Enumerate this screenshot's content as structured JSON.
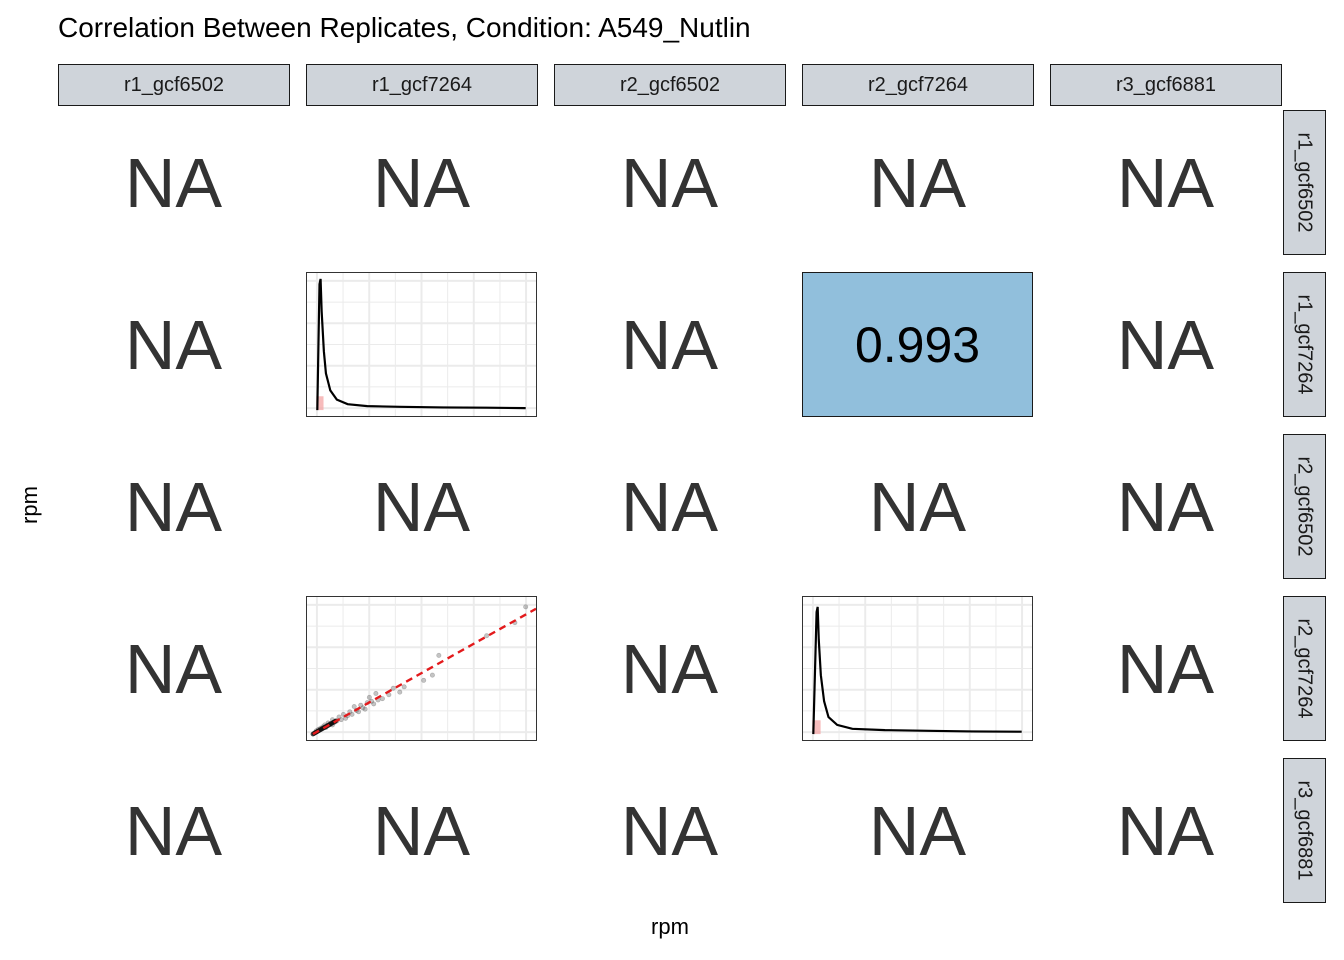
{
  "title": "Correlation Between Replicates, Condition: A549_Nutlin",
  "xlabel": "rpm",
  "ylabel": "rpm",
  "columns": [
    "r1_gcf6502",
    "r1_gcf7264",
    "r2_gcf6502",
    "r2_gcf7264",
    "r3_gcf6881"
  ],
  "rows": [
    "r1_gcf6502",
    "r1_gcf7264",
    "r2_gcf6502",
    "r2_gcf7264",
    "r3_gcf6881"
  ],
  "na_text": "NA",
  "colors": {
    "strip_fill": "#cfd4da",
    "correlation_fill": "#91bfdc",
    "fit_line": "#e31a1c",
    "density_fill": "#f4a6a6",
    "na_text": "#333333",
    "grid": "#ebebeb"
  },
  "chart_data": {
    "type": "scatter",
    "title": "Correlation Between Replicates, Condition: A549_Nutlin",
    "xlabel": "rpm",
    "ylabel": "rpm",
    "grid": true,
    "legend": "none",
    "correlation": {
      "row": "r1_gcf7264",
      "column": "r2_gcf7264",
      "value": "0.993"
    },
    "density_r1_gcf7264": [
      [
        0.02,
        0.0
      ],
      [
        0.03,
        0.96
      ],
      [
        0.035,
        1.0
      ],
      [
        0.04,
        0.75
      ],
      [
        0.05,
        0.45
      ],
      [
        0.06,
        0.28
      ],
      [
        0.08,
        0.15
      ],
      [
        0.11,
        0.08
      ],
      [
        0.16,
        0.045
      ],
      [
        0.25,
        0.03
      ],
      [
        0.4,
        0.025
      ],
      [
        0.6,
        0.02
      ],
      [
        0.8,
        0.018
      ],
      [
        0.98,
        0.015
      ]
    ],
    "density_r2_gcf7264": [
      [
        0.02,
        0.0
      ],
      [
        0.035,
        0.93
      ],
      [
        0.04,
        0.97
      ],
      [
        0.045,
        0.72
      ],
      [
        0.055,
        0.45
      ],
      [
        0.07,
        0.25
      ],
      [
        0.09,
        0.13
      ],
      [
        0.13,
        0.07
      ],
      [
        0.2,
        0.04
      ],
      [
        0.35,
        0.03
      ],
      [
        0.55,
        0.025
      ],
      [
        0.75,
        0.02
      ],
      [
        0.98,
        0.018
      ]
    ],
    "scatter_r2_vs_r1_gcf7264": {
      "points": [
        [
          0.98,
          0.97
        ],
        [
          0.93,
          0.85
        ],
        [
          0.8,
          0.75
        ],
        [
          0.58,
          0.6
        ],
        [
          0.55,
          0.45
        ],
        [
          0.51,
          0.41
        ],
        [
          0.42,
          0.36
        ],
        [
          0.4,
          0.32
        ],
        [
          0.37,
          0.35
        ],
        [
          0.35,
          0.3
        ],
        [
          0.3,
          0.26
        ],
        [
          0.28,
          0.23
        ],
        [
          0.26,
          0.28
        ],
        [
          0.25,
          0.24
        ],
        [
          0.23,
          0.2
        ],
        [
          0.22,
          0.22
        ],
        [
          0.2,
          0.18
        ],
        [
          0.19,
          0.21
        ],
        [
          0.18,
          0.15
        ],
        [
          0.17,
          0.17
        ],
        [
          0.16,
          0.14
        ],
        [
          0.15,
          0.12
        ],
        [
          0.14,
          0.15
        ],
        [
          0.13,
          0.11
        ],
        [
          0.12,
          0.13
        ],
        [
          0.11,
          0.1
        ],
        [
          0.1,
          0.09
        ],
        [
          0.09,
          0.11
        ],
        [
          0.08,
          0.08
        ],
        [
          0.075,
          0.07
        ],
        [
          0.07,
          0.085
        ],
        [
          0.06,
          0.06
        ],
        [
          0.055,
          0.07
        ],
        [
          0.05,
          0.05
        ],
        [
          0.045,
          0.055
        ],
        [
          0.04,
          0.04
        ],
        [
          0.035,
          0.045
        ],
        [
          0.03,
          0.03
        ],
        [
          0.025,
          0.035
        ],
        [
          0.02,
          0.02
        ],
        [
          0.015,
          0.025
        ],
        [
          0.01,
          0.012
        ],
        [
          0.06,
          0.05
        ],
        [
          0.09,
          0.07
        ],
        [
          0.24,
          0.19
        ],
        [
          0.29,
          0.31
        ],
        [
          0.32,
          0.27
        ],
        [
          0.21,
          0.17
        ],
        [
          0.27,
          0.25
        ]
      ],
      "fit": {
        "slope": 0.93,
        "intercept": 0.0
      }
    }
  }
}
